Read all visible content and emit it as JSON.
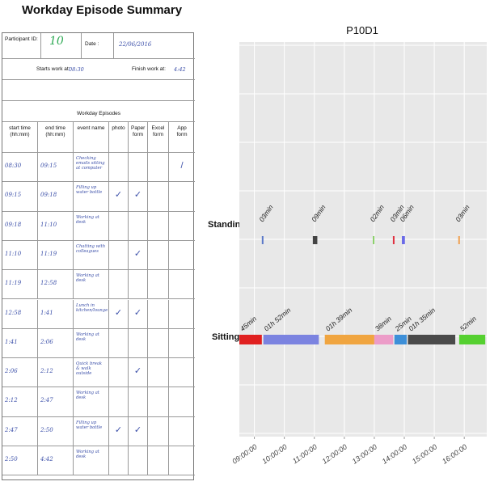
{
  "form": {
    "title": "Workday Episode Summary",
    "participant_label": "Participant ID:",
    "participant_value": "10",
    "date_label": "Date :",
    "date_value": "22/06/2016",
    "starts_label": "Starts work at:",
    "starts_value": "08:30",
    "finish_label": "Finish work at:",
    "finish_value": "4:42",
    "episodes_header": "Workday Episodes",
    "columns": [
      "start time (hh:mm)",
      "end time (hh:mm)",
      "event name",
      "photo",
      "Paper form",
      "Excel form",
      "App form"
    ],
    "rows": [
      {
        "start": "08:30",
        "end": "09:15",
        "event": "Checking emails sitting at computer",
        "photo": "",
        "paper": "",
        "app": "/"
      },
      {
        "start": "09:15",
        "end": "09:18",
        "event": "Filling up water bottle",
        "photo": "✓",
        "paper": "✓",
        "app": ""
      },
      {
        "start": "09:18",
        "end": "11:10",
        "event": "Working at desk",
        "photo": "",
        "paper": "",
        "app": ""
      },
      {
        "start": "11:10",
        "end": "11:19",
        "event": "Chatting with colleagues",
        "photo": "",
        "paper": "✓",
        "app": ""
      },
      {
        "start": "11:19",
        "end": "12:58",
        "event": "Working at desk",
        "photo": "",
        "paper": "",
        "app": ""
      },
      {
        "start": "12:58",
        "end": "1:41",
        "event": "Lunch in kitchen/lounge",
        "photo": "✓",
        "paper": "✓",
        "app": ""
      },
      {
        "start": "1:41",
        "end": "2:06",
        "event": "Working at desk",
        "photo": "",
        "paper": "",
        "app": ""
      },
      {
        "start": "2:06",
        "end": "2:12",
        "event": "Quick break & walk outside",
        "photo": "",
        "paper": "✓",
        "app": ""
      },
      {
        "start": "2:12",
        "end": "2:47",
        "event": "Working at desk",
        "photo": "",
        "paper": "",
        "app": ""
      },
      {
        "start": "2:47",
        "end": "2:50",
        "event": "Filling up water bottle",
        "photo": "✓",
        "paper": "✓",
        "app": ""
      },
      {
        "start": "2:50",
        "end": "4:42",
        "event": "Working at desk",
        "photo": "",
        "paper": "",
        "app": ""
      }
    ]
  },
  "chart_data": {
    "type": "timeline",
    "title": "P10D1",
    "categories": [
      "Standing /walking",
      "Sitting"
    ],
    "x_ticks": [
      "09:00:00",
      "10:00:00",
      "11:00:00",
      "12:00:00",
      "13:00:00",
      "14:00:00",
      "15:00:00",
      "16:00:00"
    ],
    "x_range_hours": [
      8.5,
      16.75
    ],
    "grid": true,
    "standing": [
      {
        "start": 9.25,
        "end": 9.3,
        "label": "03min",
        "color": "#5a78c8"
      },
      {
        "start": 10.95,
        "end": 11.1,
        "label": "09min",
        "color": "#444444"
      },
      {
        "start": 12.95,
        "end": 13.0,
        "label": "02min",
        "color": "#8ad06a"
      },
      {
        "start": 13.62,
        "end": 13.67,
        "label": "03min",
        "color": "#e03040"
      },
      {
        "start": 13.92,
        "end": 14.02,
        "label": "06min",
        "color": "#6a6ae8"
      },
      {
        "start": 15.8,
        "end": 15.85,
        "label": "03min",
        "color": "#f0a050"
      }
    ],
    "sitting": [
      {
        "start": 8.5,
        "end": 9.25,
        "label": "45min",
        "color": "#e02020"
      },
      {
        "start": 9.3,
        "end": 11.15,
        "label": "01h 52min",
        "color": "#7b83e0"
      },
      {
        "start": 11.35,
        "end": 13.0,
        "label": "01h 39min",
        "color": "#f0a540"
      },
      {
        "start": 13.0,
        "end": 13.63,
        "label": "38min",
        "color": "#ec9cc8"
      },
      {
        "start": 13.67,
        "end": 14.08,
        "label": "25min",
        "color": "#3d8fd8"
      },
      {
        "start": 14.12,
        "end": 15.7,
        "label": "01h 35min",
        "color": "#4a4a4a"
      },
      {
        "start": 15.83,
        "end": 16.7,
        "label": "52min",
        "color": "#55d030"
      }
    ]
  }
}
